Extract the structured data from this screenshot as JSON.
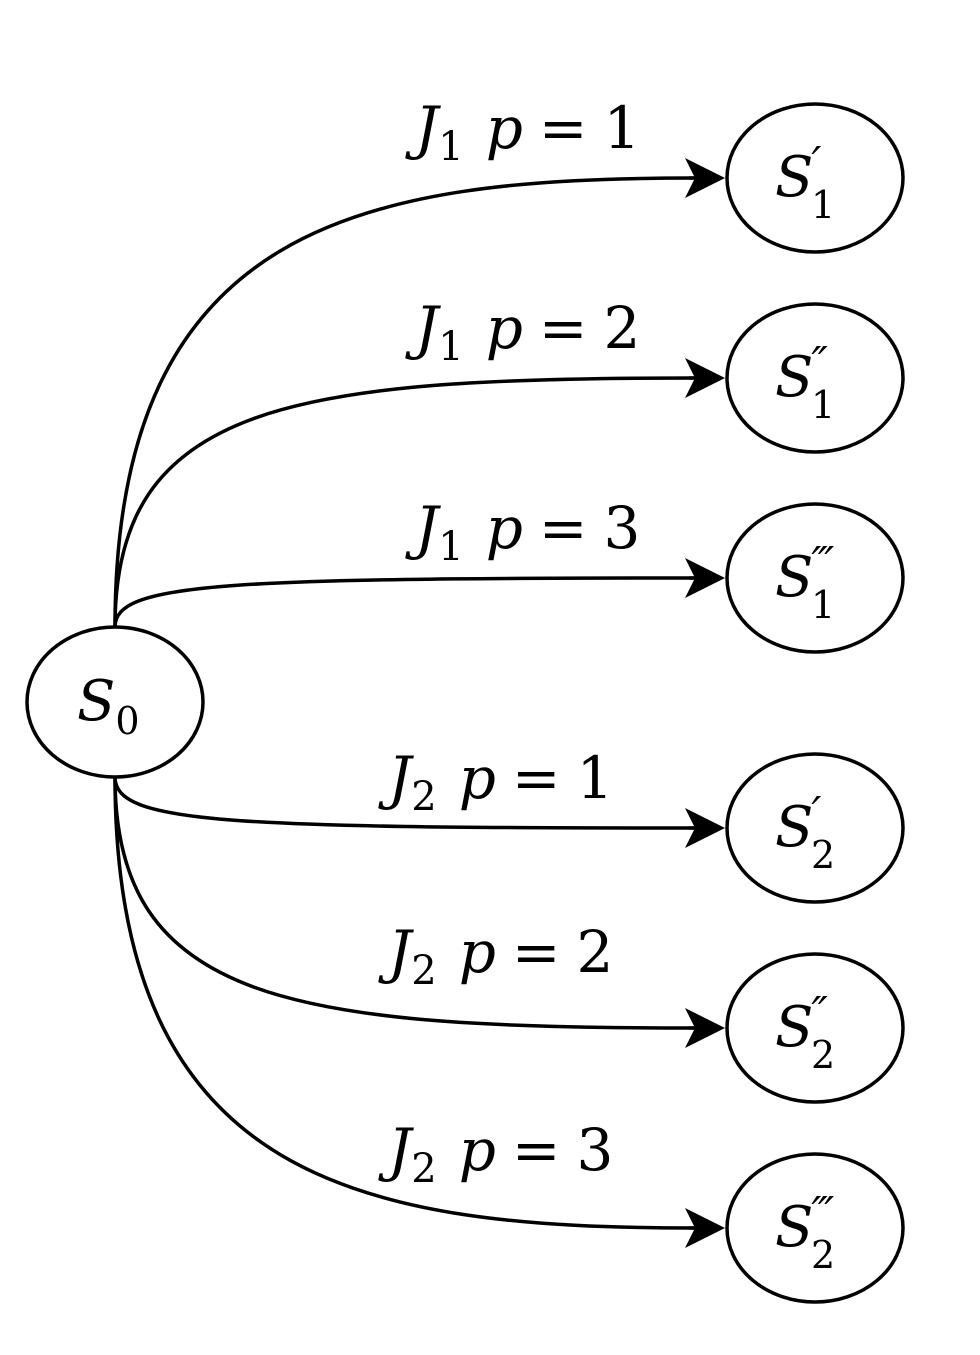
{
  "diagram": {
    "source": {
      "id": "s0",
      "symbol": "S",
      "sub": "0",
      "prime": ""
    },
    "targets": [
      {
        "id": "s1p",
        "symbol": "S",
        "sub": "1",
        "prime": "′"
      },
      {
        "id": "s1pp",
        "symbol": "S",
        "sub": "1",
        "prime": "″"
      },
      {
        "id": "s1ppp",
        "symbol": "S",
        "sub": "1",
        "prime": "‴"
      },
      {
        "id": "s2p",
        "symbol": "S",
        "sub": "2",
        "prime": "′"
      },
      {
        "id": "s2pp",
        "symbol": "S",
        "sub": "2",
        "prime": "″"
      },
      {
        "id": "s2ppp",
        "symbol": "S",
        "sub": "2",
        "prime": "‴"
      }
    ],
    "edges": [
      {
        "from": "s0",
        "to": "s1p",
        "job": "J",
        "job_sub": "1",
        "var": "p",
        "op": "=",
        "value": "1"
      },
      {
        "from": "s0",
        "to": "s1pp",
        "job": "J",
        "job_sub": "1",
        "var": "p",
        "op": "=",
        "value": "2"
      },
      {
        "from": "s0",
        "to": "s1ppp",
        "job": "J",
        "job_sub": "1",
        "var": "p",
        "op": "=",
        "value": "3"
      },
      {
        "from": "s0",
        "to": "s2p",
        "job": "J",
        "job_sub": "2",
        "var": "p",
        "op": "=",
        "value": "1"
      },
      {
        "from": "s0",
        "to": "s2pp",
        "job": "J",
        "job_sub": "2",
        "var": "p",
        "op": "=",
        "value": "2"
      },
      {
        "from": "s0",
        "to": "s2ppp",
        "job": "J",
        "job_sub": "2",
        "var": "p",
        "op": "=",
        "value": "3"
      }
    ]
  },
  "colors": {
    "stroke": "#000000",
    "fill": "#ffffff",
    "background": "#ffffff"
  }
}
